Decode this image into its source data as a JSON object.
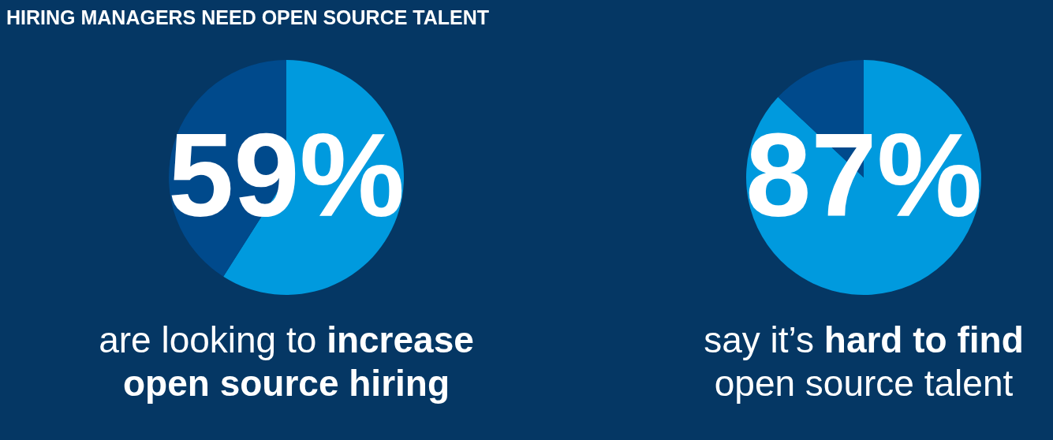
{
  "chart_data": [
    {
      "type": "pie",
      "title": "HIRING MANAGERS NEED OPEN SOURCE TALENT",
      "categories": [
        null,
        null
      ],
      "values": [
        59,
        41
      ],
      "colors": [
        "#009ade",
        "#004a8c"
      ],
      "value_labels": [
        "59%",
        null
      ],
      "annotations": [
        "are looking to",
        "increase open source hiring"
      ],
      "legend": false
    },
    {
      "type": "pie",
      "categories": [
        null,
        null
      ],
      "values": [
        87,
        13
      ],
      "colors": [
        "#009ade",
        "#004a8c"
      ],
      "value_labels": [
        "87%",
        null
      ],
      "annotations": [
        "say it’s",
        "hard to find",
        "open source talent"
      ],
      "legend": false
    }
  ]
}
